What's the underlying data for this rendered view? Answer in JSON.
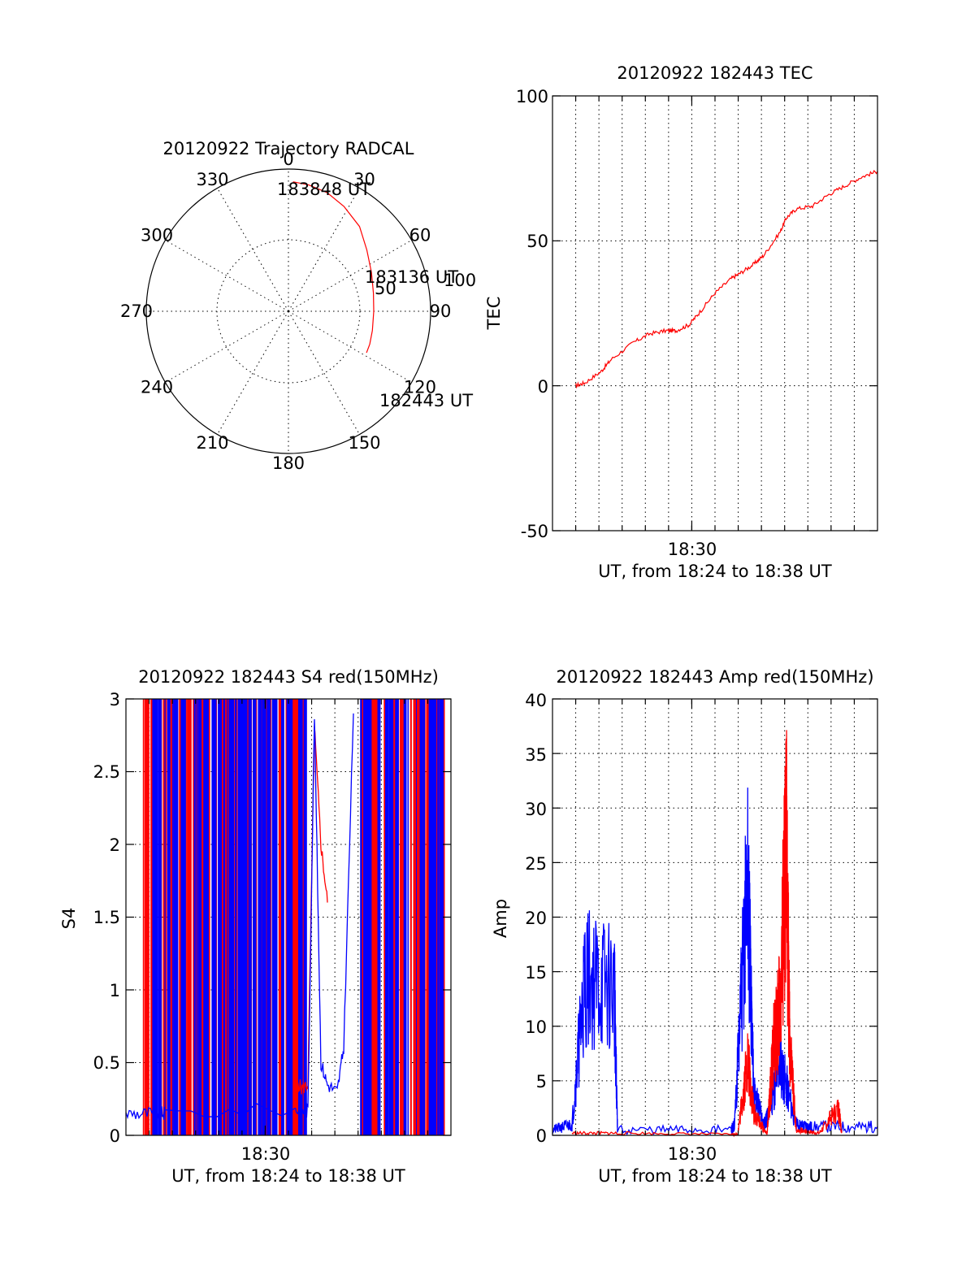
{
  "colors": {
    "red": "#ff0000",
    "blue": "#0000ff",
    "axis": "#000000"
  },
  "chart_data": [
    {
      "id": "polar",
      "type": "scatter",
      "title": "20120922 Trajectory RADCAL",
      "grid": true,
      "azimuth_labels": [
        "0",
        "30",
        "60",
        "90",
        "120",
        "150",
        "180",
        "210",
        "240",
        "270",
        "300",
        "330"
      ],
      "radius_labels": [
        "50",
        "100"
      ],
      "annotations": [
        "183848 UT",
        "183136 UT",
        "182443 UT"
      ],
      "series": [
        {
          "color": "#ff0000",
          "azimuth_deg": [
            2,
            9,
            18,
            28,
            40,
            52,
            65,
            78,
            90,
            103,
            112,
            118
          ],
          "elevation_deg": [
            8,
            9,
            11,
            15,
            20,
            27,
            32,
            35,
            36,
            35.5,
            34.5,
            34
          ]
        }
      ]
    },
    {
      "id": "tec",
      "type": "line",
      "title": "20120922 182443 TEC",
      "xlabel": "UT, from 18:24 to 18:38 UT",
      "ylabel": "TEC",
      "xtick_labels": [
        "18:30"
      ],
      "ytick_labels": [
        "-50",
        "0",
        "50",
        "100"
      ],
      "ylim": [
        -50,
        100
      ],
      "grid": true,
      "series": [
        {
          "color": "#ff0000",
          "x": [
            0.07,
            0.1,
            0.15,
            0.18,
            0.25,
            0.3,
            0.35,
            0.38,
            0.42,
            0.45,
            0.5,
            0.55,
            0.58,
            0.62,
            0.65,
            0.7,
            0.72,
            0.75,
            0.8,
            0.85,
            0.9,
            0.95,
            1.0
          ],
          "y": [
            0,
            1,
            5,
            9,
            15,
            18,
            19,
            19,
            21,
            25,
            32,
            37,
            39,
            42,
            45,
            53,
            58,
            61,
            62,
            66,
            69,
            72,
            74
          ]
        }
      ]
    },
    {
      "id": "s4",
      "type": "line",
      "title": "20120922 182443 S4 red(150MHz)",
      "xlabel": "UT, from 18:24 to 18:38 UT",
      "ylabel": "S4",
      "xtick_labels": [
        "18:30"
      ],
      "ytick_labels": [
        "0",
        "0.5",
        "1",
        "1.5",
        "2",
        "2.5",
        "3"
      ],
      "ylim": [
        0,
        3
      ],
      "grid": true,
      "series": [
        {
          "color": "#ff0000",
          "x": [
            0.52,
            0.54,
            0.56,
            0.58,
            0.6,
            0.62
          ],
          "y": [
            0.4,
            0.32,
            0.35,
            2.8,
            2.0,
            1.6
          ]
        },
        {
          "color": "#0000ff",
          "x": [
            0.0,
            0.05,
            0.1,
            0.12,
            0.52,
            0.54,
            0.56,
            0.58,
            0.6,
            0.62,
            0.65,
            0.67,
            0.7
          ],
          "y": [
            0.15,
            0.15,
            0.15,
            0.15,
            0.18,
            0.16,
            0.17,
            2.9,
            0.5,
            0.35,
            0.3,
            0.6,
            2.9
          ]
        }
      ]
    },
    {
      "id": "amp",
      "type": "line",
      "title": "20120922 182443 Amp red(150MHz)",
      "xlabel": "UT, from 18:24 to 18:38 UT",
      "ylabel": "Amp",
      "xtick_labels": [
        "18:30"
      ],
      "ytick_labels": [
        "0",
        "5",
        "10",
        "15",
        "20",
        "25",
        "30",
        "35",
        "40"
      ],
      "ylim": [
        0,
        40
      ],
      "grid": true,
      "series": [
        {
          "color": "#0000ff",
          "x": [
            0.0,
            0.06,
            0.1,
            0.19,
            0.2,
            0.55,
            0.56,
            0.6,
            0.62,
            0.65,
            0.66,
            0.7,
            0.75,
            0.8,
            1.0
          ],
          "y": [
            0.5,
            1.0,
            14.5,
            13.5,
            0.5,
            0.5,
            1.0,
            23,
            4.0,
            1.0,
            1.5,
            7.0,
            1.0,
            0.8,
            0.8
          ]
        },
        {
          "color": "#ff0000",
          "x": [
            0.06,
            0.2,
            0.55,
            0.57,
            0.6,
            0.62,
            0.66,
            0.68,
            0.7,
            0.72,
            0.73,
            0.75,
            0.82,
            0.88,
            0.89
          ],
          "y": [
            0.2,
            0.2,
            0.1,
            0.1,
            7.0,
            2.0,
            0.1,
            8.0,
            12.0,
            26.0,
            8.0,
            0.5,
            0.2,
            2.5,
            0.2
          ]
        }
      ]
    }
  ]
}
